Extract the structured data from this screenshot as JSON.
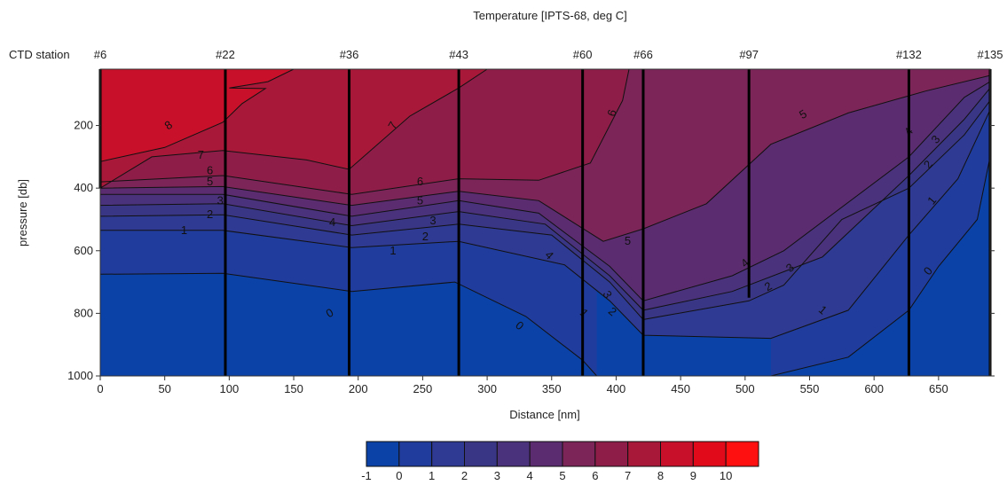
{
  "chart_data": {
    "type": "heatmap",
    "subtype": "filled-contour-section",
    "title": "Temperature [IPTS-68, deg C]",
    "xlabel": "Distance [nm]",
    "ylabel": "pressure [db]",
    "station_row_label": "CTD station",
    "xlim": [
      0,
      690
    ],
    "ylim": [
      1000,
      20
    ],
    "y_inverted": true,
    "x_ticks": [
      0,
      50,
      100,
      150,
      200,
      250,
      300,
      350,
      400,
      450,
      500,
      550,
      600,
      650
    ],
    "y_ticks": [
      200,
      400,
      600,
      800,
      1000
    ],
    "grid": false,
    "stations": [
      {
        "name": "#6",
        "x": 0,
        "bottom": 400
      },
      {
        "name": "#22",
        "x": 97,
        "bottom": 1000
      },
      {
        "name": "#36",
        "x": 193,
        "bottom": 1000
      },
      {
        "name": "#43",
        "x": 278,
        "bottom": 1000
      },
      {
        "name": "#60",
        "x": 374,
        "bottom": 1000
      },
      {
        "name": "#66",
        "x": 421,
        "bottom": 1000
      },
      {
        "name": "#97",
        "x": 503,
        "bottom": 750
      },
      {
        "name": "#132",
        "x": 627,
        "bottom": 1000
      },
      {
        "name": "#135",
        "x": 690,
        "bottom": 1000
      }
    ],
    "colorbar": {
      "levels": [
        -1,
        0,
        1,
        2,
        3,
        4,
        5,
        6,
        7,
        8,
        9,
        10,
        11
      ],
      "tick_labels": [
        "-1",
        "0",
        "1",
        "2",
        "3",
        "4",
        "5",
        "6",
        "7",
        "8",
        "9",
        "10"
      ],
      "colors": [
        "#0a42a8",
        "#203c9c",
        "#2f3a92",
        "#3a3686",
        "#4a327c",
        "#5c2c70",
        "#7b2558",
        "#8e1e48",
        "#a81838",
        "#c8102a",
        "#e00a1a",
        "#ff1010"
      ]
    },
    "isotherms": [
      {
        "value": 0,
        "points": [
          [
            0,
            675
          ],
          [
            95,
            672
          ],
          [
            195,
            730
          ],
          [
            275,
            700
          ],
          [
            330,
            810
          ],
          [
            374,
            950
          ],
          [
            385,
            1000
          ]
        ]
      },
      {
        "value": 0,
        "points": [
          [
            520,
            1000
          ],
          [
            580,
            940
          ],
          [
            627,
            790
          ],
          [
            650,
            650
          ],
          [
            680,
            500
          ],
          [
            690,
            300
          ]
        ]
      },
      {
        "value": 1,
        "points": [
          [
            0,
            535
          ],
          [
            95,
            535
          ],
          [
            195,
            590
          ],
          [
            278,
            570
          ],
          [
            360,
            645
          ],
          [
            395,
            760
          ],
          [
            421,
            870
          ],
          [
            520,
            880
          ],
          [
            580,
            790
          ],
          [
            627,
            550
          ],
          [
            665,
            370
          ],
          [
            690,
            150
          ]
        ]
      },
      {
        "value": 2,
        "points": [
          [
            0,
            490
          ],
          [
            95,
            485
          ],
          [
            195,
            550
          ],
          [
            278,
            515
          ],
          [
            350,
            550
          ],
          [
            395,
            700
          ],
          [
            421,
            820
          ],
          [
            503,
            760
          ],
          [
            530,
            710
          ],
          [
            575,
            500
          ],
          [
            627,
            400
          ],
          [
            670,
            230
          ],
          [
            690,
            120
          ]
        ]
      },
      {
        "value": 3,
        "points": [
          [
            0,
            455
          ],
          [
            95,
            450
          ],
          [
            195,
            520
          ],
          [
            278,
            475
          ],
          [
            345,
            515
          ],
          [
            395,
            680
          ],
          [
            421,
            790
          ],
          [
            490,
            730
          ],
          [
            560,
            620
          ],
          [
            627,
            360
          ],
          [
            670,
            180
          ],
          [
            690,
            80
          ]
        ]
      },
      {
        "value": 4,
        "points": [
          [
            0,
            420
          ],
          [
            95,
            420
          ],
          [
            195,
            490
          ],
          [
            278,
            440
          ],
          [
            340,
            480
          ],
          [
            395,
            650
          ],
          [
            421,
            760
          ],
          [
            490,
            680
          ],
          [
            530,
            600
          ],
          [
            627,
            300
          ],
          [
            670,
            110
          ],
          [
            690,
            60
          ]
        ]
      },
      {
        "value": 5,
        "points": [
          [
            0,
            400
          ],
          [
            95,
            395
          ],
          [
            195,
            455
          ],
          [
            278,
            410
          ],
          [
            340,
            440
          ],
          [
            390,
            570
          ],
          [
            421,
            530
          ],
          [
            470,
            450
          ],
          [
            520,
            260
          ],
          [
            580,
            160
          ],
          [
            640,
            90
          ],
          [
            690,
            40
          ]
        ]
      },
      {
        "value": 6,
        "points": [
          [
            0,
            380
          ],
          [
            95,
            360
          ],
          [
            195,
            420
          ],
          [
            278,
            370
          ],
          [
            340,
            375
          ],
          [
            380,
            320
          ],
          [
            405,
            120
          ],
          [
            410,
            20
          ]
        ]
      },
      {
        "value": 7,
        "points": [
          [
            0,
            400
          ],
          [
            40,
            300
          ],
          [
            95,
            280
          ],
          [
            160,
            310
          ],
          [
            193,
            340
          ],
          [
            240,
            170
          ],
          [
            278,
            80
          ],
          [
            300,
            20
          ]
        ]
      },
      {
        "value": 8,
        "points": [
          [
            0,
            315
          ],
          [
            50,
            270
          ],
          [
            95,
            190
          ],
          [
            110,
            130
          ],
          [
            128,
            82
          ],
          [
            100,
            80
          ],
          [
            130,
            60
          ],
          [
            150,
            20
          ]
        ]
      }
    ],
    "contour_labels": [
      {
        "text": "8",
        "x": 53,
        "y": 200,
        "angle": -35
      },
      {
        "text": "7",
        "x": 78,
        "y": 295,
        "angle": 0
      },
      {
        "text": "6",
        "x": 85,
        "y": 345,
        "angle": 0
      },
      {
        "text": "5",
        "x": 85,
        "y": 380,
        "angle": 0
      },
      {
        "text": "3",
        "x": 93,
        "y": 440,
        "angle": 0
      },
      {
        "text": "2",
        "x": 85,
        "y": 485,
        "angle": 0
      },
      {
        "text": "1",
        "x": 65,
        "y": 535,
        "angle": 0
      },
      {
        "text": "0",
        "x": 178,
        "y": 800,
        "angle": -30
      },
      {
        "text": "7",
        "x": 227,
        "y": 200,
        "angle": -60
      },
      {
        "text": "6",
        "x": 248,
        "y": 380,
        "angle": 0
      },
      {
        "text": "5",
        "x": 248,
        "y": 440,
        "angle": 0
      },
      {
        "text": "4",
        "x": 180,
        "y": 510,
        "angle": 0
      },
      {
        "text": "3",
        "x": 258,
        "y": 505,
        "angle": 0
      },
      {
        "text": "2",
        "x": 252,
        "y": 555,
        "angle": 0
      },
      {
        "text": "1",
        "x": 227,
        "y": 600,
        "angle": 0
      },
      {
        "text": "0",
        "x": 325,
        "y": 840,
        "angle": 40
      },
      {
        "text": "4",
        "x": 348,
        "y": 615,
        "angle": 45
      },
      {
        "text": "3",
        "x": 393,
        "y": 740,
        "angle": 60
      },
      {
        "text": "1",
        "x": 375,
        "y": 800,
        "angle": 45
      },
      {
        "text": "2",
        "x": 397,
        "y": 795,
        "angle": 40
      },
      {
        "text": "6",
        "x": 397,
        "y": 160,
        "angle": -75
      },
      {
        "text": "5",
        "x": 409,
        "y": 570,
        "angle": 0
      },
      {
        "text": "5",
        "x": 545,
        "y": 165,
        "angle": -30
      },
      {
        "text": "4",
        "x": 500,
        "y": 640,
        "angle": -40
      },
      {
        "text": "3",
        "x": 535,
        "y": 655,
        "angle": -40
      },
      {
        "text": "2",
        "x": 518,
        "y": 715,
        "angle": -30
      },
      {
        "text": "1",
        "x": 560,
        "y": 790,
        "angle": 40
      },
      {
        "text": "0",
        "x": 642,
        "y": 665,
        "angle": -50
      },
      {
        "text": "4",
        "x": 627,
        "y": 220,
        "angle": -50
      },
      {
        "text": "3",
        "x": 648,
        "y": 245,
        "angle": -50
      },
      {
        "text": "2",
        "x": 642,
        "y": 325,
        "angle": -50
      },
      {
        "text": "1",
        "x": 645,
        "y": 440,
        "angle": -50
      }
    ]
  }
}
